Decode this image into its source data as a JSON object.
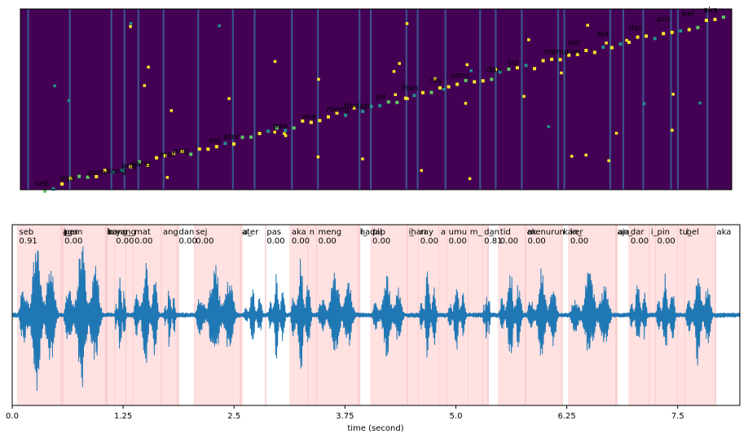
{
  "chart_data": [
    {
      "type": "heatmap",
      "title": "",
      "xlabel": "",
      "ylabel": "",
      "background_color": "#440154",
      "token_labels": [
        {
          "x": 0.2,
          "y": 0.02,
          "text": "seb"
        },
        {
          "x": 0.55,
          "y": 0.05,
          "text": "aga"
        },
        {
          "x": 0.95,
          "y": 0.08,
          "text": "pem"
        },
        {
          "x": 1.2,
          "y": 0.09,
          "text": "bang"
        },
        {
          "x": 1.42,
          "y": 0.12,
          "text": "ang"
        },
        {
          "x": 1.55,
          "y": 0.13,
          "text": "yang"
        },
        {
          "x": 1.95,
          "y": 0.18,
          "text": "mat"
        },
        {
          "x": 2.15,
          "y": 0.2,
          "text": "ang"
        },
        {
          "x": 2.65,
          "y": 0.26,
          "text": "sej"
        },
        {
          "x": 2.85,
          "y": 0.28,
          "text": "ater"
        },
        {
          "x": 3.55,
          "y": 0.34,
          "text": "pas"
        },
        {
          "x": 3.95,
          "y": 0.39,
          "text": "aka"
        },
        {
          "x": 4.3,
          "y": 0.43,
          "text": "meng"
        },
        {
          "x": 4.55,
          "y": 0.45,
          "text": "hadap"
        },
        {
          "x": 5.0,
          "y": 0.5,
          "text": "pil"
        },
        {
          "x": 5.35,
          "y": 0.55,
          "text": "ihan"
        },
        {
          "x": 5.75,
          "y": 0.59,
          "text": "ray"
        },
        {
          "x": 6.05,
          "y": 0.62,
          "text": "umu"
        },
        {
          "x": 6.55,
          "y": 0.65,
          "text": "dan"
        },
        {
          "x": 6.85,
          "y": 0.69,
          "text": "tid"
        },
        {
          "x": 7.35,
          "y": 0.75,
          "text": "menurun"
        },
        {
          "x": 7.7,
          "y": 0.8,
          "text": "ker"
        },
        {
          "x": 8.1,
          "y": 0.85,
          "text": "aja"
        },
        {
          "x": 8.55,
          "y": 0.88,
          "text": "dar"
        },
        {
          "x": 8.95,
          "y": 0.93,
          "text": "pin"
        },
        {
          "x": 9.3,
          "y": 0.96,
          "text": "bel"
        },
        {
          "x": 9.6,
          "y": 0.98,
          "text": "aka"
        }
      ]
    },
    {
      "type": "line",
      "title": "",
      "xlabel": "time (second)",
      "ylabel": "",
      "xlim": [
        0,
        8.2
      ],
      "ylim": [
        -1,
        1
      ],
      "xticks": [
        0.0,
        1.25,
        2.5,
        3.75,
        5.0,
        6.25,
        7.5
      ],
      "xtick_labels": [
        "0.0",
        "1.25",
        "2.5",
        "3.75",
        "5.0",
        "6.25",
        "7.5"
      ],
      "waveform_color": "#1f77b4",
      "segment_color": "#ffdcdc",
      "segments": [
        {
          "start": 0.06,
          "end": 0.55,
          "label": "seb",
          "score": "0.91"
        },
        {
          "start": 0.55,
          "end": 0.56,
          "label": "aga",
          "score": ""
        },
        {
          "start": 0.56,
          "end": 0.57,
          "label": "j_",
          "score": ""
        },
        {
          "start": 0.57,
          "end": 1.05,
          "label": "pem",
          "score": "0.00"
        },
        {
          "start": 1.05,
          "end": 1.06,
          "label": "bang",
          "score": ""
        },
        {
          "start": 1.06,
          "end": 1.07,
          "label": "ka",
          "score": ""
        },
        {
          "start": 1.07,
          "end": 1.15,
          "label": "n",
          "score": ""
        },
        {
          "start": 1.15,
          "end": 1.28,
          "label": "yang",
          "score": "0.00"
        },
        {
          "start": 1.28,
          "end": 1.36,
          "label": "_",
          "score": ""
        },
        {
          "start": 1.36,
          "end": 1.68,
          "label": "mat",
          "score": "0.00"
        },
        {
          "start": 1.68,
          "end": 1.86,
          "label": "ang",
          "score": ""
        },
        {
          "start": 1.86,
          "end": 1.88,
          "label": "dan",
          "score": "0.00"
        },
        {
          "start": 2.05,
          "end": 2.57,
          "label": "sej",
          "score": "0.00"
        },
        {
          "start": 2.57,
          "end": 2.58,
          "label": "ater",
          "score": ""
        },
        {
          "start": 2.58,
          "end": 2.59,
          "label": "a_",
          "score": ""
        },
        {
          "start": 2.85,
          "end": 2.86,
          "label": "pas",
          "score": "0.00"
        },
        {
          "start": 3.13,
          "end": 3.33,
          "label": "aka",
          "score": "0.00"
        },
        {
          "start": 3.33,
          "end": 3.43,
          "label": "n",
          "score": ""
        },
        {
          "start": 3.43,
          "end": 3.9,
          "label": "meng",
          "score": "0.00"
        },
        {
          "start": 3.9,
          "end": 3.91,
          "label": "hadap",
          "score": ""
        },
        {
          "start": 3.91,
          "end": 3.92,
          "label": "i_",
          "score": ""
        },
        {
          "start": 4.04,
          "end": 4.45,
          "label": "pil",
          "score": "0.00"
        },
        {
          "start": 4.45,
          "end": 4.46,
          "label": "ihan",
          "score": ""
        },
        {
          "start": 4.46,
          "end": 4.58,
          "label": "_",
          "score": ""
        },
        {
          "start": 4.58,
          "end": 4.81,
          "label": "ray",
          "score": "0.00"
        },
        {
          "start": 4.81,
          "end": 4.9,
          "label": "a",
          "score": ""
        },
        {
          "start": 4.9,
          "end": 5.14,
          "label": "umu",
          "score": "0.00"
        },
        {
          "start": 5.14,
          "end": 5.3,
          "label": "m_",
          "score": ""
        },
        {
          "start": 5.3,
          "end": 5.36,
          "label": "dan",
          "score": "0.81"
        },
        {
          "start": 5.36,
          "end": 5.37,
          "label": "_",
          "score": ""
        },
        {
          "start": 5.48,
          "end": 5.78,
          "label": "tid",
          "score": "0.00"
        },
        {
          "start": 5.78,
          "end": 5.79,
          "label": "ak",
          "score": ""
        },
        {
          "start": 5.79,
          "end": 6.19,
          "label": "menurun",
          "score": "0.00"
        },
        {
          "start": 6.19,
          "end": 6.2,
          "label": "kan_",
          "score": ""
        },
        {
          "start": 6.27,
          "end": 6.8,
          "label": "ker",
          "score": "0.00"
        },
        {
          "start": 6.8,
          "end": 6.81,
          "label": "aja",
          "score": ""
        },
        {
          "start": 6.81,
          "end": 6.82,
          "label": "an_",
          "score": ""
        },
        {
          "start": 6.95,
          "end": 7.18,
          "label": "dar",
          "score": "0.00"
        },
        {
          "start": 7.18,
          "end": 7.25,
          "label": "i_",
          "score": ""
        },
        {
          "start": 7.25,
          "end": 7.5,
          "label": "pin",
          "score": "0.00"
        },
        {
          "start": 7.5,
          "end": 7.58,
          "label": "tu_",
          "score": ""
        },
        {
          "start": 7.58,
          "end": 7.92,
          "label": "bel",
          "score": ""
        },
        {
          "start": 7.92,
          "end": 7.93,
          "label": "aka",
          "score": ""
        }
      ]
    }
  ]
}
